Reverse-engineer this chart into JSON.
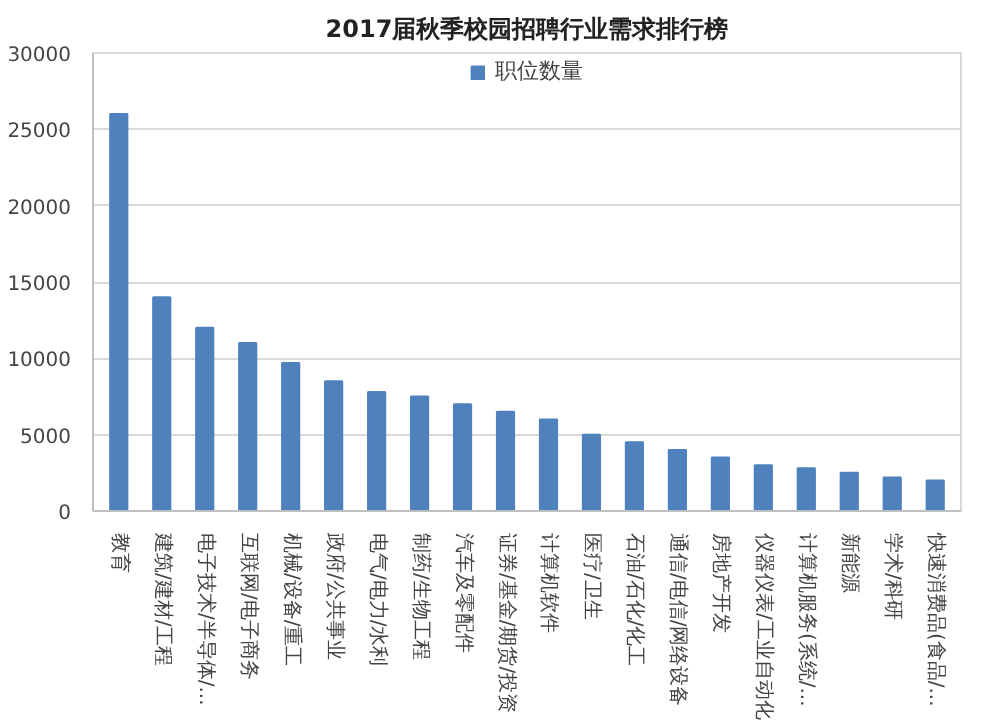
{
  "chart_data": {
    "type": "bar",
    "title": "2017届秋季校园招聘行业需求排行榜",
    "categories": [
      "教育",
      "建筑/建材/工程",
      "电子技术/半导体/...",
      "互联网/电子商务",
      "机械/设备/重工",
      "政府/公共事业",
      "电气/电力/水利",
      "制药/生物工程",
      "汽车及零配件",
      "证券/基金/期货/投资",
      "计算机软件",
      "医疗/卫生",
      "石油/石化/化工",
      "通信/电信/网络设备",
      "房地产开发",
      "仪器仪表/工业自动化",
      "计算机服务(系统/...",
      "新能源",
      "学术/科研",
      "快速消费品(食品/..."
    ],
    "series": [
      {
        "name": "职位数量",
        "color": "#4f81bd",
        "values": [
          26000,
          14000,
          12000,
          11000,
          9700,
          8500,
          7800,
          7500,
          7000,
          6500,
          6000,
          5000,
          4500,
          4000,
          3500,
          3000,
          2800,
          2500,
          2200,
          2000
        ]
      }
    ],
    "ylim": [
      0,
      30000
    ],
    "yticks": [
      0,
      5000,
      10000,
      15000,
      20000,
      25000,
      30000
    ],
    "grid": "y",
    "legend": "top"
  }
}
